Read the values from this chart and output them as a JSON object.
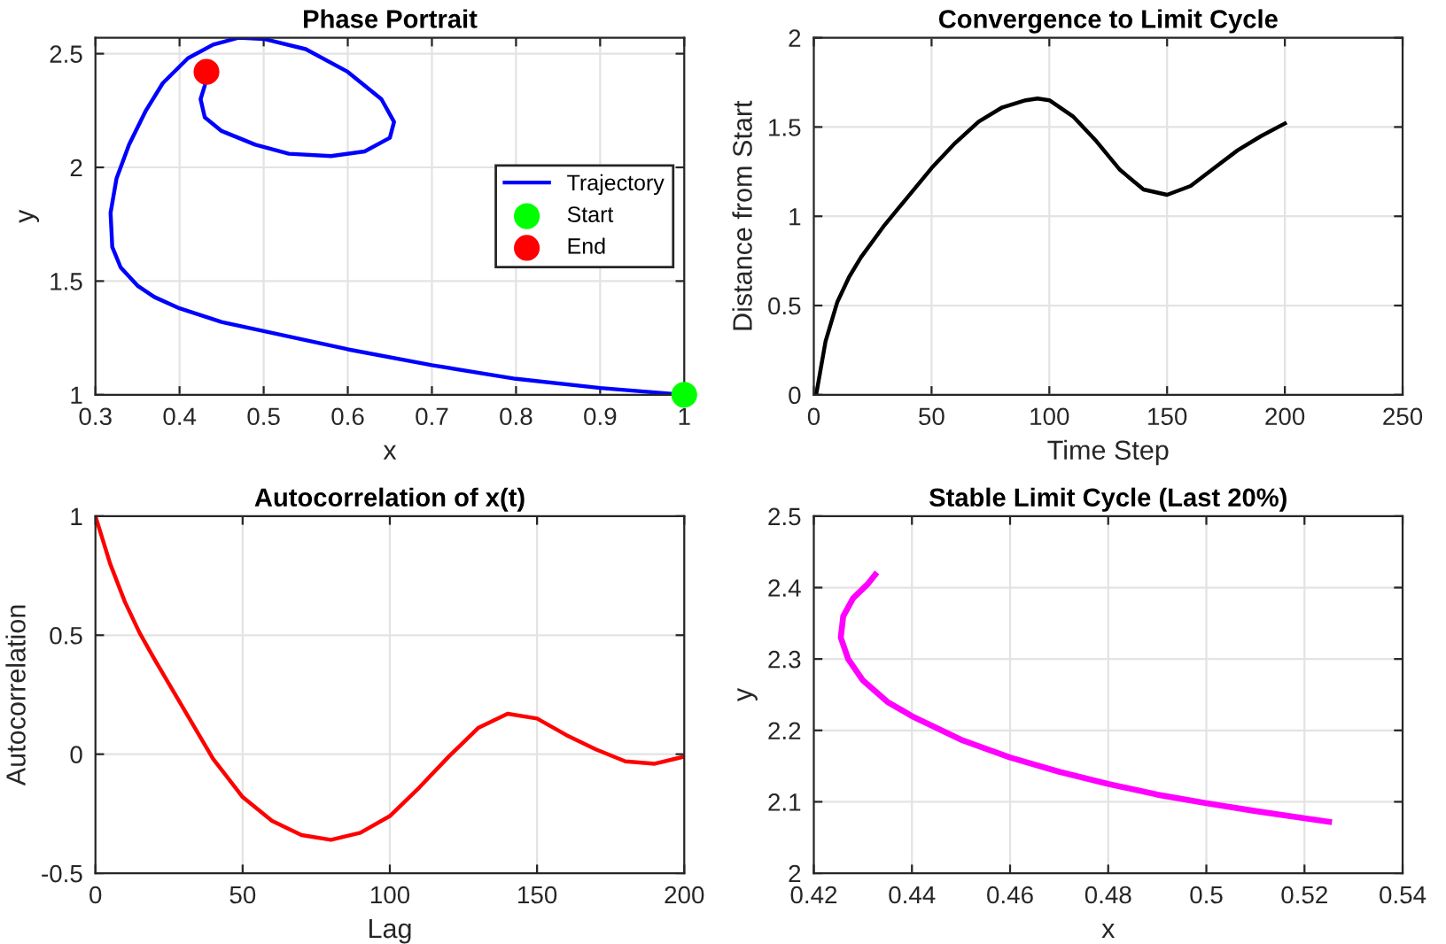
{
  "chart_data": [
    {
      "type": "line",
      "title": "Phase Portrait",
      "xlabel": "x",
      "ylabel": "y",
      "xlim": [
        0.3,
        1
      ],
      "ylim": [
        1,
        2.57
      ],
      "xticks": [
        0.3,
        0.4,
        0.5,
        0.6,
        0.7,
        0.8,
        0.9,
        1
      ],
      "yticks": [
        1,
        1.5,
        2,
        2.5
      ],
      "grid": true,
      "legend": "center right",
      "series": [
        {
          "name": "Trajectory",
          "color": "#0000ff",
          "x": [
            1,
            0.9,
            0.8,
            0.7,
            0.6,
            0.5,
            0.45,
            0.4,
            0.37,
            0.35,
            0.33,
            0.32,
            0.318,
            0.325,
            0.34,
            0.36,
            0.38,
            0.41,
            0.44,
            0.47,
            0.5,
            0.55,
            0.6,
            0.64,
            0.655,
            0.65,
            0.62,
            0.58,
            0.53,
            0.49,
            0.45,
            0.43,
            0.425,
            0.43,
            0.432
          ],
          "values": [
            1,
            1.03,
            1.07,
            1.13,
            1.2,
            1.28,
            1.32,
            1.38,
            1.43,
            1.48,
            1.56,
            1.65,
            1.8,
            1.95,
            2.1,
            2.25,
            2.37,
            2.48,
            2.54,
            2.57,
            2.565,
            2.52,
            2.42,
            2.3,
            2.2,
            2.13,
            2.07,
            2.05,
            2.06,
            2.1,
            2.16,
            2.22,
            2.3,
            2.36,
            2.42
          ]
        },
        {
          "name": "Start",
          "type": "scatter",
          "marker": "circle",
          "color": "#00ff00",
          "x": [
            1
          ],
          "values": [
            1
          ]
        },
        {
          "name": "End",
          "type": "scatter",
          "marker": "circle",
          "color": "#ff0000",
          "x": [
            0.432
          ],
          "values": [
            2.42
          ]
        }
      ]
    },
    {
      "type": "line",
      "title": "Convergence to Limit Cycle",
      "xlabel": "Time Step",
      "ylabel": "Distance from Start",
      "xlim": [
        0,
        250
      ],
      "ylim": [
        0,
        2
      ],
      "xticks": [
        0,
        50,
        100,
        150,
        200,
        250
      ],
      "yticks": [
        0,
        0.5,
        1,
        1.5,
        2
      ],
      "grid": true,
      "series": [
        {
          "color": "#000000",
          "x": [
            1,
            3,
            5,
            10,
            15,
            20,
            25,
            30,
            40,
            50,
            60,
            70,
            80,
            90,
            95,
            100,
            110,
            120,
            130,
            140,
            150,
            160,
            170,
            180,
            190,
            200
          ],
          "values": [
            0,
            0.15,
            0.3,
            0.52,
            0.66,
            0.77,
            0.86,
            0.95,
            1.11,
            1.27,
            1.41,
            1.53,
            1.61,
            1.65,
            1.66,
            1.65,
            1.56,
            1.42,
            1.26,
            1.15,
            1.12,
            1.17,
            1.27,
            1.37,
            1.45,
            1.52
          ]
        }
      ]
    },
    {
      "type": "line",
      "title": "Autocorrelation of x(t)",
      "xlabel": "Lag",
      "ylabel": "Autocorrelation",
      "xlim": [
        0,
        200
      ],
      "ylim": [
        -0.5,
        1
      ],
      "xticks": [
        0,
        50,
        100,
        150,
        200
      ],
      "yticks": [
        -0.5,
        0,
        0.5,
        1
      ],
      "grid": true,
      "series": [
        {
          "color": "#ff0000",
          "x": [
            0,
            5,
            10,
            15,
            20,
            30,
            40,
            50,
            60,
            70,
            80,
            90,
            100,
            110,
            120,
            130,
            140,
            150,
            160,
            170,
            180,
            190,
            200
          ],
          "values": [
            1,
            0.8,
            0.64,
            0.51,
            0.4,
            0.19,
            -0.02,
            -0.18,
            -0.28,
            -0.34,
            -0.36,
            -0.33,
            -0.26,
            -0.14,
            -0.01,
            0.11,
            0.17,
            0.15,
            0.08,
            0.02,
            -0.03,
            -0.04,
            -0.01
          ]
        }
      ]
    },
    {
      "type": "line",
      "title": "Stable Limit Cycle (Last 20%)",
      "xlabel": "x",
      "ylabel": "y",
      "xlim": [
        0.42,
        0.54
      ],
      "ylim": [
        2,
        2.5
      ],
      "xticks": [
        0.42,
        0.44,
        0.46,
        0.48,
        0.5,
        0.52,
        0.54
      ],
      "yticks": [
        2,
        2.1,
        2.2,
        2.3,
        2.4,
        2.5
      ],
      "grid": true,
      "series": [
        {
          "color": "#ff00ff",
          "x": [
            0.525,
            0.52,
            0.51,
            0.5,
            0.49,
            0.48,
            0.47,
            0.46,
            0.45,
            0.44,
            0.435,
            0.43,
            0.427,
            0.4255,
            0.426,
            0.428,
            0.431,
            0.4325
          ],
          "values": [
            2.072,
            2.077,
            2.087,
            2.098,
            2.11,
            2.125,
            2.142,
            2.162,
            2.187,
            2.22,
            2.24,
            2.27,
            2.3,
            2.33,
            2.36,
            2.385,
            2.405,
            2.418
          ]
        }
      ]
    }
  ]
}
